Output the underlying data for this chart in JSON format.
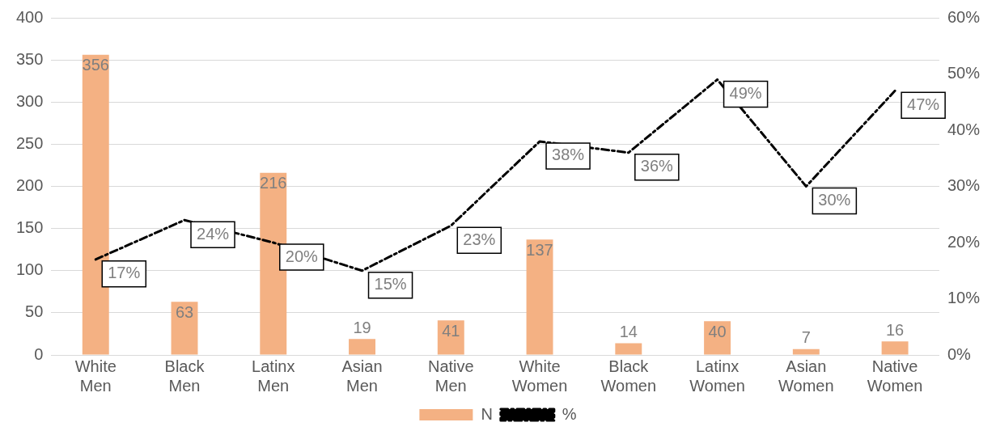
{
  "chart_data": {
    "type": "bar",
    "categories": [
      "White Men",
      "Black Men",
      "Latinx Men",
      "Asian Men",
      "Native Men",
      "White Women",
      "Black Women",
      "Latinx Women",
      "Asian Women",
      "Native Women"
    ],
    "series": [
      {
        "name": "N",
        "color": "#f4b183",
        "values": [
          356,
          63,
          216,
          19,
          41,
          137,
          14,
          40,
          7,
          16
        ],
        "value_labels": [
          "356",
          "63",
          "216",
          "19",
          "41",
          "137",
          "14",
          "40",
          "7",
          "16"
        ]
      },
      {
        "name": "%",
        "type": "line",
        "axis": "y2",
        "color": "#000000",
        "line_style": "dashdot",
        "values": [
          17,
          24,
          20,
          15,
          23,
          38,
          36,
          49,
          30,
          47
        ],
        "value_labels": [
          "17%",
          "24%",
          "20%",
          "15%",
          "23%",
          "38%",
          "36%",
          "49%",
          "30%",
          "47%"
        ]
      }
    ],
    "ylim": [
      0,
      400
    ],
    "yticks": [
      0,
      50,
      100,
      150,
      200,
      250,
      300,
      350,
      400
    ],
    "y2lim": [
      0,
      60
    ],
    "y2ticks": [
      {
        "value": 0,
        "label": "0%"
      },
      {
        "value": 10,
        "label": "10%"
      },
      {
        "value": 20,
        "label": "20%"
      },
      {
        "value": 30,
        "label": "30%"
      },
      {
        "value": 40,
        "label": "40%"
      },
      {
        "value": 50,
        "label": "50%"
      },
      {
        "value": 60,
        "label": "60%"
      }
    ],
    "grid": "y",
    "legend": "bottom"
  }
}
